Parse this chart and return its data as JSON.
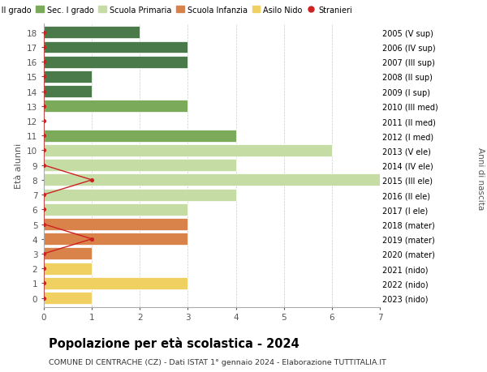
{
  "ages": [
    18,
    17,
    16,
    15,
    14,
    13,
    12,
    11,
    10,
    9,
    8,
    7,
    6,
    5,
    4,
    3,
    2,
    1,
    0
  ],
  "years": [
    "2005 (V sup)",
    "2006 (IV sup)",
    "2007 (III sup)",
    "2008 (II sup)",
    "2009 (I sup)",
    "2010 (III med)",
    "2011 (II med)",
    "2012 (I med)",
    "2013 (V ele)",
    "2014 (IV ele)",
    "2015 (III ele)",
    "2016 (II ele)",
    "2017 (I ele)",
    "2018 (mater)",
    "2019 (mater)",
    "2020 (mater)",
    "2021 (nido)",
    "2022 (nido)",
    "2023 (nido)"
  ],
  "bar_values": [
    2,
    3,
    3,
    1,
    1,
    3,
    0,
    4,
    6,
    4,
    7,
    4,
    3,
    3,
    3,
    1,
    1,
    3,
    1
  ],
  "bar_colors": [
    "#4a7a4a",
    "#4a7a4a",
    "#4a7a4a",
    "#4a7a4a",
    "#4a7a4a",
    "#7aaa5a",
    "#7aaa5a",
    "#7aaa5a",
    "#c5dda5",
    "#c5dda5",
    "#c5dda5",
    "#c5dda5",
    "#c5dda5",
    "#d9834a",
    "#d9834a",
    "#d9834a",
    "#f0d060",
    "#f0d060",
    "#f0d060"
  ],
  "stranieri_x": [
    0,
    0,
    0,
    0,
    0,
    0,
    0,
    0,
    0,
    0,
    1,
    0,
    0,
    0,
    1,
    0,
    0,
    0,
    0
  ],
  "legend_labels": [
    "Sec. II grado",
    "Sec. I grado",
    "Scuola Primaria",
    "Scuola Infanzia",
    "Asilo Nido",
    "Stranieri"
  ],
  "legend_colors": [
    "#4a7a4a",
    "#7aaa5a",
    "#c5dda5",
    "#d9834a",
    "#f0d060",
    "#cc2222"
  ],
  "ylabel": "Età alunni",
  "right_label": "Anni di nascita",
  "title": "Popolazione per età scolastica - 2024",
  "subtitle": "COMUNE DI CENTRACHE (CZ) - Dati ISTAT 1° gennaio 2024 - Elaborazione TUTTITALIA.IT",
  "xlim": [
    0,
    7
  ],
  "background_color": "#ffffff",
  "stranieri_color": "#cc2222",
  "grid_color": "#cccccc"
}
